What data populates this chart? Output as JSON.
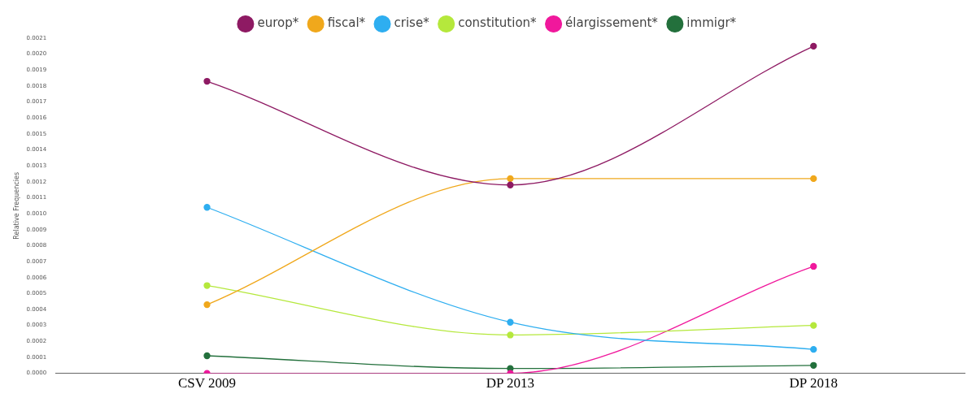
{
  "chart_data": {
    "type": "line",
    "ylabel": "Relative Frequencies",
    "categories": [
      "CSV 2009",
      "DP 2013",
      "DP 2018"
    ],
    "series": [
      {
        "name": "europ*",
        "color": "#8e1a63",
        "values": [
          0.00183,
          0.00118,
          0.00205
        ]
      },
      {
        "name": "fiscal*",
        "color": "#f0a81c",
        "values": [
          0.00043,
          0.00122,
          0.00122
        ]
      },
      {
        "name": "crise*",
        "color": "#2eaef0",
        "values": [
          0.00104,
          0.00032,
          0.00015
        ]
      },
      {
        "name": "constitution*",
        "color": "#b5e83c",
        "values": [
          0.00055,
          0.00024,
          0.0003
        ]
      },
      {
        "name": "élargissement*",
        "color": "#f0189c",
        "values": [
          0,
          0,
          0.00067
        ]
      },
      {
        "name": "immigr*",
        "color": "#23703c",
        "values": [
          0.00011,
          3e-05,
          5e-05
        ]
      }
    ],
    "ylim": [
      0,
      0.0021
    ],
    "yticks": [
      {
        "value": 0,
        "label": "0.0000"
      },
      {
        "value": 0.0001,
        "label": "0.0001"
      },
      {
        "value": 0.0002,
        "label": "0.0002"
      },
      {
        "value": 0.0003,
        "label": "0.0003"
      },
      {
        "value": 0.0004,
        "label": "0.0004"
      },
      {
        "value": 0.0005,
        "label": "0.0005"
      },
      {
        "value": 0.0006,
        "label": "0.0006"
      },
      {
        "value": 0.0007,
        "label": "0.0007"
      },
      {
        "value": 0.0008,
        "label": "0.0008"
      },
      {
        "value": 0.0009,
        "label": "0.0009"
      },
      {
        "value": 0.001,
        "label": "0.0010"
      },
      {
        "value": 0.0011,
        "label": "0.0011"
      },
      {
        "value": 0.0012,
        "label": "0.0012"
      },
      {
        "value": 0.0013,
        "label": "0.0013"
      },
      {
        "value": 0.0014,
        "label": "0.0014"
      },
      {
        "value": 0.0015,
        "label": "0.0015"
      },
      {
        "value": 0.0016,
        "label": "0.0016"
      },
      {
        "value": 0.0017,
        "label": "0.0017"
      },
      {
        "value": 0.0018,
        "label": "0.0018"
      },
      {
        "value": 0.0019,
        "label": "0.0019"
      },
      {
        "value": 0.002,
        "label": "0.0020"
      },
      {
        "value": 0.0021,
        "label": "0.0021"
      }
    ],
    "legend": "top",
    "grid": false,
    "marker": "circle",
    "line_style": "solid"
  }
}
